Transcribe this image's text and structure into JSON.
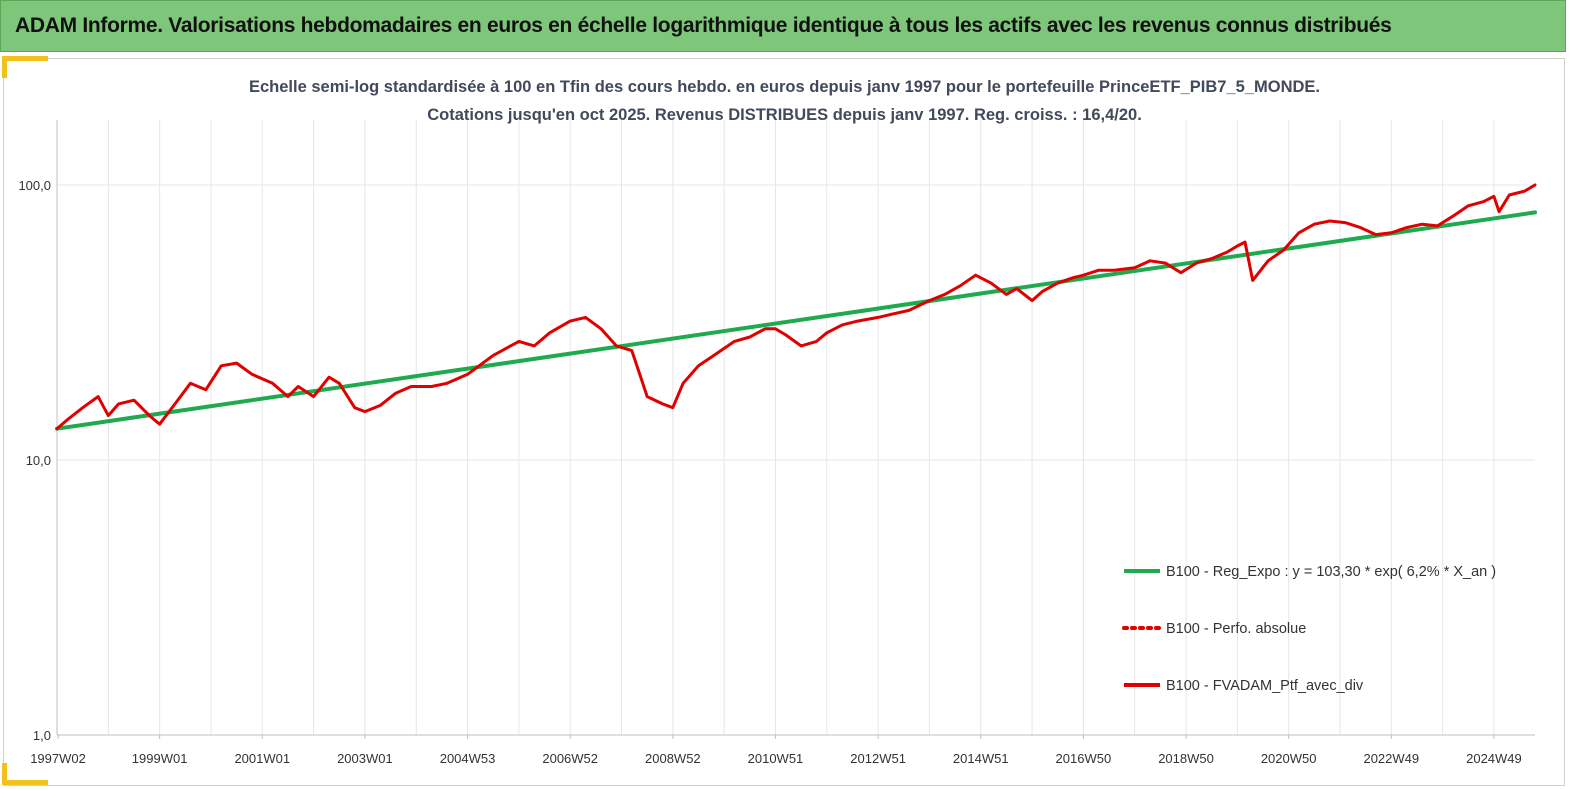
{
  "banner": {
    "title": "ADAM Informe. Valorisations hebdomadaires en euros en échelle logarithmique identique à tous les actifs avec les revenus connus distribués"
  },
  "chart_data": {
    "type": "line",
    "subtitle_line1": "Echelle semi-log standardisée à 100 en Tfin des cours hebdo. en euros depuis janv 1997 pour le portefeuille PrinceETF_PIB7_5_MONDE.",
    "subtitle_line2": "Cotations jusqu'en oct 2025. Revenus DISTRIBUES depuis janv 1997. Reg. croiss. : 16,4/20.",
    "y_scale": "log",
    "ylim": [
      1,
      100
    ],
    "yticks": [
      "1,0",
      "10,0",
      "100,0"
    ],
    "xlim": [
      1997.0,
      2025.8
    ],
    "xticks": [
      {
        "label": "1997W02",
        "x": 1997.02
      },
      {
        "label": "1999W01",
        "x": 1999.0
      },
      {
        "label": "2001W01",
        "x": 2001.0
      },
      {
        "label": "2003W01",
        "x": 2003.0
      },
      {
        "label": "2004W53",
        "x": 2005.0
      },
      {
        "label": "2006W52",
        "x": 2007.0
      },
      {
        "label": "2008W52",
        "x": 2009.0
      },
      {
        "label": "2010W51",
        "x": 2011.0
      },
      {
        "label": "2012W51",
        "x": 2013.0
      },
      {
        "label": "2014W51",
        "x": 2015.0
      },
      {
        "label": "2016W50",
        "x": 2017.0
      },
      {
        "label": "2018W50",
        "x": 2019.0
      },
      {
        "label": "2020W50",
        "x": 2021.0
      },
      {
        "label": "2022W49",
        "x": 2023.0
      },
      {
        "label": "2024W49",
        "x": 2025.0
      }
    ],
    "grid": true,
    "legend_position": "bottom-right",
    "series": [
      {
        "name": "B100 - Reg_Expo : y = 103,30 * exp( 6,2% *  X_an )",
        "color": "#1faa4f",
        "style": "solid",
        "x": [
          1997.0,
          2025.8
        ],
        "y": [
          13.0,
          79.5
        ]
      },
      {
        "name": "B100 - Perfo. absolue",
        "color": "#e00000",
        "style": "dotted",
        "x": [],
        "y": []
      },
      {
        "name": "B100 - FVADAM_Ptf_avec_div",
        "color": "#e00000",
        "style": "solid",
        "x": [
          1997.0,
          1997.2,
          1997.5,
          1997.8,
          1998.0,
          1998.2,
          1998.5,
          1998.8,
          1999.0,
          1999.3,
          1999.6,
          1999.9,
          2000.2,
          2000.5,
          2000.8,
          2001.2,
          2001.5,
          2001.7,
          2002.0,
          2002.3,
          2002.5,
          2002.8,
          2003.0,
          2003.3,
          2003.6,
          2003.9,
          2004.3,
          2004.6,
          2005.0,
          2005.5,
          2006.0,
          2006.3,
          2006.6,
          2007.0,
          2007.3,
          2007.6,
          2007.9,
          2008.2,
          2008.5,
          2008.8,
          2009.0,
          2009.2,
          2009.5,
          2009.8,
          2010.2,
          2010.5,
          2010.8,
          2011.0,
          2011.2,
          2011.5,
          2011.8,
          2012.0,
          2012.3,
          2012.6,
          2013.0,
          2013.3,
          2013.6,
          2014.0,
          2014.3,
          2014.6,
          2014.9,
          2015.2,
          2015.5,
          2015.7,
          2016.0,
          2016.2,
          2016.5,
          2016.8,
          2017.0,
          2017.3,
          2017.6,
          2018.0,
          2018.3,
          2018.6,
          2018.9,
          2019.2,
          2019.5,
          2019.8,
          2020.0,
          2020.15,
          2020.3,
          2020.6,
          2020.9,
          2021.2,
          2021.5,
          2021.8,
          2022.1,
          2022.4,
          2022.7,
          2023.0,
          2023.3,
          2023.6,
          2023.9,
          2024.2,
          2024.5,
          2024.8,
          2025.0,
          2025.1,
          2025.3,
          2025.6,
          2025.8
        ],
        "y": [
          13.0,
          14.0,
          15.5,
          17.0,
          14.5,
          16.0,
          16.5,
          14.5,
          13.5,
          16.0,
          19.0,
          18.0,
          22.0,
          22.5,
          20.5,
          19.0,
          17.0,
          18.5,
          17.0,
          20.0,
          19.0,
          15.5,
          15.0,
          15.8,
          17.5,
          18.5,
          18.5,
          19.0,
          20.5,
          24.0,
          27.0,
          26.0,
          29.0,
          32.0,
          33.0,
          30.0,
          26.0,
          25.0,
          17.0,
          16.0,
          15.5,
          19.0,
          22.0,
          24.0,
          27.0,
          28.0,
          30.0,
          30.0,
          28.5,
          26.0,
          27.0,
          29.0,
          31.0,
          32.0,
          33.0,
          34.0,
          35.0,
          38.0,
          40.0,
          43.0,
          47.0,
          44.0,
          40.0,
          42.0,
          38.0,
          41.0,
          44.0,
          46.0,
          47.0,
          49.0,
          49.0,
          50.0,
          53.0,
          52.0,
          48.0,
          52.0,
          54.0,
          57.0,
          60.0,
          62.0,
          45.0,
          53.0,
          58.0,
          67.0,
          72.0,
          74.0,
          73.0,
          70.0,
          66.0,
          67.0,
          70.0,
          72.0,
          71.0,
          77.0,
          84.0,
          87.0,
          91.0,
          80.0,
          92.0,
          95.0,
          100.0
        ]
      }
    ]
  }
}
